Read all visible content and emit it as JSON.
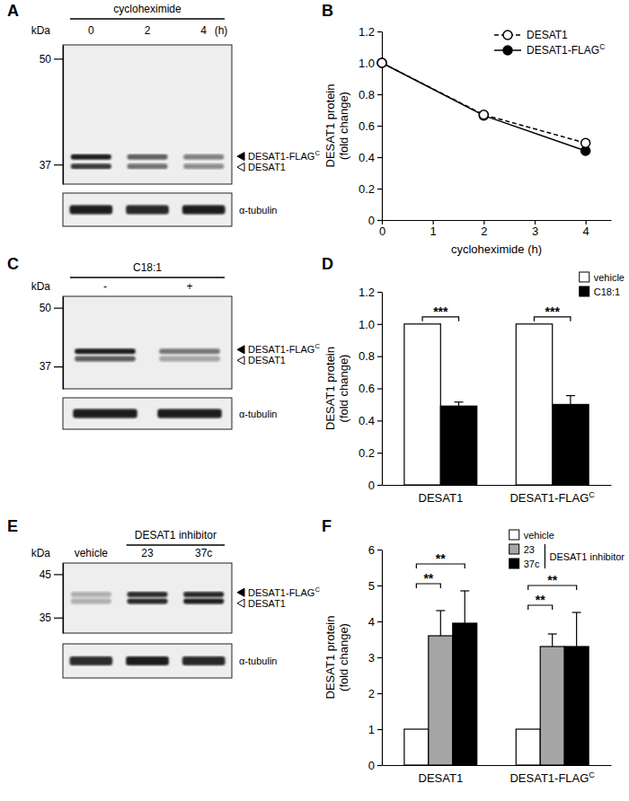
{
  "chart_data": [
    {
      "panel": "A",
      "type": "blot",
      "lane_title": "cycloheximide",
      "lane_title_lanes": [
        0,
        1,
        2
      ],
      "lanes": [
        "0",
        "2",
        "4"
      ],
      "lane_unit": "(h)",
      "y_label": "kDa",
      "log": "y",
      "ylim": [
        35,
        52
      ],
      "yticks": [
        50,
        37
      ],
      "bands": [
        {
          "name": "DESAT1-FLAGC",
          "marker": "filled",
          "kda": 37.8,
          "values": [
            1,
            0.68,
            0.5
          ]
        },
        {
          "name": "DESAT1",
          "marker": "open",
          "kda": 36.8,
          "values": [
            0.85,
            0.6,
            0.45
          ]
        }
      ],
      "loading_control": {
        "name": "α-tubulin",
        "values": [
          1,
          0.95,
          1
        ]
      }
    },
    {
      "panel": "B",
      "type": "line",
      "x": [
        0,
        2,
        4
      ],
      "xlim": [
        0,
        4.5
      ],
      "xticks": [
        0,
        1,
        2,
        3,
        4
      ],
      "ylim": [
        0,
        1.2
      ],
      "yticks": [
        0,
        0.2,
        0.4,
        0.6,
        0.8,
        {
          "value": 1,
          "label": "1.0"
        },
        1.2
      ],
      "x_label": "cycloheximide (h)",
      "y_label": [
        "DESAT1 protein",
        "(fold change)"
      ],
      "legend": "top-right",
      "series": [
        {
          "name": "DESAT1",
          "color": "#000000",
          "marker": "open",
          "line_style": "dashed",
          "values": [
            1,
            0.67,
            0.49
          ]
        },
        {
          "name": "DESAT1-FLAGC",
          "color": "#000000",
          "marker": "filled",
          "line_style": "solid",
          "values": [
            1,
            0.665,
            0.44
          ]
        }
      ]
    },
    {
      "panel": "C",
      "type": "blot",
      "lane_title": "C18:1",
      "lane_title_lanes": [
        0,
        1
      ],
      "lanes": [
        "-",
        "+"
      ],
      "y_label": "kDa",
      "log": "y",
      "ylim": [
        33,
        53
      ],
      "yticks": [
        50,
        37
      ],
      "bands": [
        {
          "name": "DESAT1-FLAGC",
          "marker": "filled",
          "kda": 40,
          "values": [
            1,
            0.55
          ]
        },
        {
          "name": "DESAT1",
          "marker": "open",
          "kda": 38.5,
          "values": [
            0.7,
            0.35
          ]
        }
      ],
      "loading_control": {
        "name": "α-tubulin",
        "values": [
          1,
          1
        ]
      }
    },
    {
      "panel": "D",
      "type": "bar",
      "categories": [
        "DESAT1",
        "DESAT1-FLAGC"
      ],
      "ylim": [
        0,
        1.2
      ],
      "yticks": [
        0,
        0.2,
        0.4,
        0.6,
        0.8,
        {
          "value": 1,
          "label": "1.0"
        },
        1.2
      ],
      "y_label": [
        "DESAT1 protein",
        "(fold change)"
      ],
      "legend": "top-right",
      "series": [
        {
          "name": "vehicle",
          "color": "#ffffff",
          "values": [
            1,
            1
          ]
        },
        {
          "name": "C18:1",
          "color": "#000000",
          "values": [
            0.49,
            0.5
          ],
          "errors": [
            0.025,
            0.055
          ]
        }
      ],
      "significance": [
        {
          "category": 0,
          "pair": [
            0,
            1
          ],
          "label": "***"
        },
        {
          "category": 1,
          "pair": [
            0,
            1
          ],
          "label": "***"
        }
      ]
    },
    {
      "panel": "E",
      "type": "blot",
      "lane_title": "DESAT1 inhibitor",
      "lane_title_lanes": [
        1,
        2
      ],
      "lanes": [
        "vehicle",
        "23",
        "37c"
      ],
      "y_label": "kDa",
      "log": "y",
      "ylim": [
        32,
        48
      ],
      "yticks": [
        45,
        35
      ],
      "bands": [
        {
          "name": "DESAT1-FLAGC",
          "marker": "filled",
          "kda": 40,
          "values": [
            0.3,
            0.9,
            0.95
          ]
        },
        {
          "name": "DESAT1",
          "marker": "open",
          "kda": 38.5,
          "values": [
            0.3,
            0.95,
            1
          ]
        }
      ],
      "loading_control": {
        "name": "α-tubulin",
        "values": [
          0.9,
          1,
          0.95
        ]
      }
    },
    {
      "panel": "F",
      "type": "bar",
      "categories": [
        "DESAT1",
        "DESAT1-FLAGC"
      ],
      "ylim": [
        0,
        6
      ],
      "yticks": [
        0,
        1,
        2,
        3,
        4,
        5,
        6
      ],
      "y_label": [
        "DESAT1 protein",
        "(fold change)"
      ],
      "legend": "top-right",
      "series": [
        {
          "name": "vehicle",
          "color": "#ffffff",
          "values": [
            1,
            1
          ]
        },
        {
          "name": "23",
          "color": "#a6a6a6",
          "values": [
            3.6,
            3.3
          ],
          "errors": [
            0.7,
            0.35
          ]
        },
        {
          "name": "37c",
          "color": "#000000",
          "values": [
            3.95,
            3.3
          ],
          "errors": [
            0.9,
            0.95
          ]
        }
      ],
      "legend_group": {
        "label": "DESAT1 inhibitor",
        "series": [
          1,
          2
        ]
      },
      "significance": [
        {
          "category": 0,
          "pair": [
            0,
            1
          ],
          "label": "**"
        },
        {
          "category": 0,
          "pair": [
            0,
            2
          ],
          "label": "**"
        },
        {
          "category": 1,
          "pair": [
            0,
            1
          ],
          "label": "**"
        },
        {
          "category": 1,
          "pair": [
            0,
            2
          ],
          "label": "**"
        }
      ]
    }
  ]
}
